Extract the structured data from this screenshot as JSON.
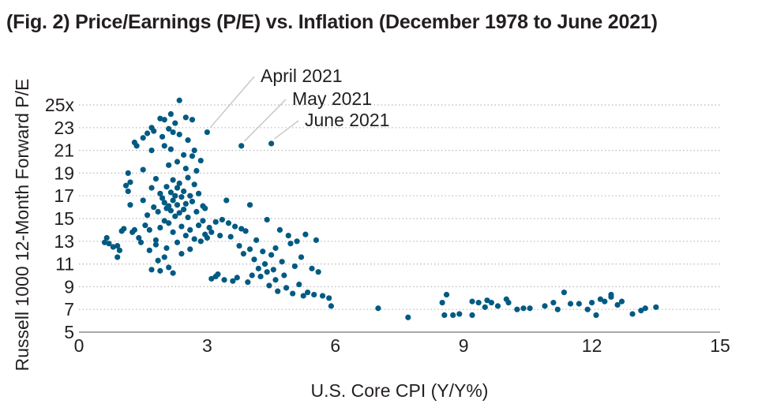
{
  "title": "(Fig. 2) Price/Earnings (P/E) vs. Inflation (December 1978 to June 2021)",
  "chart_data": {
    "type": "scatter",
    "title": "(Fig. 2) Price/Earnings (P/E) vs. Inflation (December 1978 to June 2021)",
    "xlabel": "U.S. Core CPI (Y/Y%)",
    "ylabel": "Russell 1000 12-Month Forward P/E",
    "xlim": [
      0,
      15
    ],
    "ylim": [
      5,
      25
    ],
    "x_ticks": [
      "0",
      "3",
      "6",
      "9",
      "12",
      "15"
    ],
    "y_ticks": [
      "5",
      "7",
      "9",
      "11",
      "13",
      "15",
      "17",
      "19",
      "21",
      "23",
      "25x"
    ],
    "grid": "horizontal dotted",
    "point_color": "#005a82",
    "annotations": [
      {
        "label": "April 2021",
        "x": 3.0,
        "y": 22.6
      },
      {
        "label": "May 2021",
        "x": 3.8,
        "y": 21.4
      },
      {
        "label": "June 2021",
        "x": 4.5,
        "y": 21.6
      }
    ],
    "points": [
      [
        0.6,
        12.9
      ],
      [
        0.65,
        13.3
      ],
      [
        0.7,
        12.8
      ],
      [
        0.8,
        12.5
      ],
      [
        0.9,
        11.6
      ],
      [
        0.95,
        12.2
      ],
      [
        0.9,
        12.6
      ],
      [
        1.0,
        13.9
      ],
      [
        1.05,
        14.1
      ],
      [
        1.1,
        17.9
      ],
      [
        1.15,
        19.0
      ],
      [
        1.15,
        17.4
      ],
      [
        1.2,
        18.2
      ],
      [
        1.2,
        16.2
      ],
      [
        1.25,
        13.8
      ],
      [
        1.3,
        21.7
      ],
      [
        1.35,
        21.4
      ],
      [
        1.3,
        14.0
      ],
      [
        1.4,
        13.3
      ],
      [
        1.45,
        12.9
      ],
      [
        1.5,
        22.1
      ],
      [
        1.5,
        19.3
      ],
      [
        1.5,
        16.6
      ],
      [
        1.55,
        14.4
      ],
      [
        1.6,
        22.5
      ],
      [
        1.6,
        15.3
      ],
      [
        1.65,
        14.0
      ],
      [
        1.65,
        12.2
      ],
      [
        1.7,
        23.0
      ],
      [
        1.7,
        21.0
      ],
      [
        1.7,
        17.7
      ],
      [
        1.7,
        10.5
      ],
      [
        1.75,
        22.7
      ],
      [
        1.75,
        16.0
      ],
      [
        1.8,
        18.5
      ],
      [
        1.8,
        13.1
      ],
      [
        1.8,
        12.7
      ],
      [
        1.85,
        15.6
      ],
      [
        1.85,
        11.3
      ],
      [
        1.9,
        23.8
      ],
      [
        1.9,
        17.2
      ],
      [
        1.9,
        14.2
      ],
      [
        1.9,
        10.4
      ],
      [
        1.95,
        22.2
      ],
      [
        1.95,
        16.8
      ],
      [
        2.0,
        23.7
      ],
      [
        2.0,
        21.4
      ],
      [
        2.0,
        16.4
      ],
      [
        2.0,
        14.8
      ],
      [
        2.0,
        11.6
      ],
      [
        2.05,
        17.8
      ],
      [
        2.05,
        15.9
      ],
      [
        2.05,
        12.4
      ],
      [
        2.1,
        22.9
      ],
      [
        2.1,
        19.7
      ],
      [
        2.1,
        16.1
      ],
      [
        2.1,
        14.6
      ],
      [
        2.1,
        10.7
      ],
      [
        2.15,
        24.2
      ],
      [
        2.15,
        21.1
      ],
      [
        2.15,
        17.3
      ],
      [
        2.15,
        15.7
      ],
      [
        2.2,
        22.6
      ],
      [
        2.2,
        18.4
      ],
      [
        2.2,
        16.6
      ],
      [
        2.2,
        13.8
      ],
      [
        2.2,
        10.2
      ],
      [
        2.25,
        23.4
      ],
      [
        2.25,
        17.0
      ],
      [
        2.25,
        15.2
      ],
      [
        2.3,
        20.0
      ],
      [
        2.3,
        17.7
      ],
      [
        2.3,
        16.2
      ],
      [
        2.3,
        12.9
      ],
      [
        2.35,
        25.4
      ],
      [
        2.35,
        22.4
      ],
      [
        2.35,
        18.1
      ],
      [
        2.35,
        15.5
      ],
      [
        2.4,
        16.9
      ],
      [
        2.4,
        14.3
      ],
      [
        2.4,
        11.9
      ],
      [
        2.45,
        20.6
      ],
      [
        2.45,
        17.4
      ],
      [
        2.45,
        15.8
      ],
      [
        2.5,
        23.9
      ],
      [
        2.5,
        19.4
      ],
      [
        2.5,
        16.3
      ],
      [
        2.5,
        13.5
      ],
      [
        2.55,
        21.9
      ],
      [
        2.55,
        18.6
      ],
      [
        2.55,
        15.1
      ],
      [
        2.6,
        17.0
      ],
      [
        2.6,
        14.0
      ],
      [
        2.6,
        12.3
      ],
      [
        2.65,
        23.7
      ],
      [
        2.65,
        20.5
      ],
      [
        2.65,
        16.5
      ],
      [
        2.7,
        21.0
      ],
      [
        2.7,
        18.0
      ],
      [
        2.7,
        13.2
      ],
      [
        2.75,
        19.2
      ],
      [
        2.75,
        15.6
      ],
      [
        2.8,
        17.2
      ],
      [
        2.8,
        14.4
      ],
      [
        2.85,
        20.1
      ],
      [
        2.85,
        13.0
      ],
      [
        2.9,
        16.1
      ],
      [
        2.9,
        14.8
      ],
      [
        2.95,
        15.9
      ],
      [
        2.95,
        13.6
      ],
      [
        3.0,
        22.6
      ],
      [
        3.0,
        13.3
      ],
      [
        3.05,
        14.2
      ],
      [
        3.1,
        9.7
      ],
      [
        3.1,
        13.8
      ],
      [
        3.2,
        9.9
      ],
      [
        3.2,
        14.7
      ],
      [
        3.25,
        10.1
      ],
      [
        3.3,
        13.5
      ],
      [
        3.35,
        14.9
      ],
      [
        3.4,
        9.6
      ],
      [
        3.45,
        16.6
      ],
      [
        3.5,
        14.6
      ],
      [
        3.55,
        13.4
      ],
      [
        3.6,
        9.5
      ],
      [
        3.65,
        14.3
      ],
      [
        3.7,
        9.8
      ],
      [
        3.75,
        12.6
      ],
      [
        3.8,
        21.4
      ],
      [
        3.8,
        14.1
      ],
      [
        3.85,
        11.9
      ],
      [
        3.9,
        13.9
      ],
      [
        3.95,
        9.4
      ],
      [
        4.0,
        16.2
      ],
      [
        4.0,
        12.3
      ],
      [
        4.05,
        10.0
      ],
      [
        4.1,
        11.4
      ],
      [
        4.15,
        13.1
      ],
      [
        4.2,
        10.6
      ],
      [
        4.25,
        9.9
      ],
      [
        4.3,
        12.1
      ],
      [
        4.35,
        11.0
      ],
      [
        4.4,
        14.9
      ],
      [
        4.4,
        10.3
      ],
      [
        4.45,
        9.1
      ],
      [
        4.5,
        21.6
      ],
      [
        4.5,
        11.8
      ],
      [
        4.55,
        10.5
      ],
      [
        4.6,
        12.4
      ],
      [
        4.6,
        9.6
      ],
      [
        4.65,
        8.6
      ],
      [
        4.7,
        14.0
      ],
      [
        4.75,
        11.2
      ],
      [
        4.8,
        10.0
      ],
      [
        4.85,
        8.9
      ],
      [
        4.9,
        13.5
      ],
      [
        4.95,
        12.8
      ],
      [
        5.0,
        8.4
      ],
      [
        5.05,
        10.8
      ],
      [
        5.1,
        13.0
      ],
      [
        5.15,
        9.2
      ],
      [
        5.2,
        11.6
      ],
      [
        5.25,
        8.2
      ],
      [
        5.3,
        13.6
      ],
      [
        5.35,
        8.5
      ],
      [
        5.45,
        10.6
      ],
      [
        5.5,
        8.3
      ],
      [
        5.55,
        13.1
      ],
      [
        5.6,
        10.3
      ],
      [
        5.7,
        8.2
      ],
      [
        5.85,
        8.0
      ],
      [
        5.9,
        7.3
      ],
      [
        7.0,
        7.1
      ],
      [
        7.7,
        6.3
      ],
      [
        8.5,
        7.6
      ],
      [
        8.55,
        6.5
      ],
      [
        8.6,
        8.3
      ],
      [
        8.75,
        6.5
      ],
      [
        8.9,
        6.6
      ],
      [
        9.2,
        7.7
      ],
      [
        9.2,
        6.5
      ],
      [
        9.35,
        7.6
      ],
      [
        9.5,
        7.2
      ],
      [
        9.65,
        7.6
      ],
      [
        9.8,
        7.3
      ],
      [
        10.0,
        7.9
      ],
      [
        10.05,
        7.6
      ],
      [
        10.25,
        7.0
      ],
      [
        10.4,
        7.1
      ],
      [
        10.55,
        7.1
      ],
      [
        10.9,
        7.3
      ],
      [
        11.1,
        7.6
      ],
      [
        11.2,
        7.0
      ],
      [
        11.5,
        7.5
      ],
      [
        11.7,
        7.5
      ],
      [
        11.9,
        7.0
      ],
      [
        12.0,
        7.6
      ],
      [
        12.1,
        6.5
      ],
      [
        12.2,
        7.9
      ],
      [
        12.3,
        7.7
      ],
      [
        12.45,
        8.1
      ],
      [
        12.6,
        7.4
      ],
      [
        12.7,
        7.7
      ],
      [
        12.95,
        6.6
      ],
      [
        13.15,
        6.9
      ],
      [
        13.25,
        7.1
      ],
      [
        13.5,
        7.2
      ],
      [
        11.35,
        8.5
      ],
      [
        12.45,
        8.3
      ],
      [
        9.55,
        7.8
      ]
    ]
  }
}
